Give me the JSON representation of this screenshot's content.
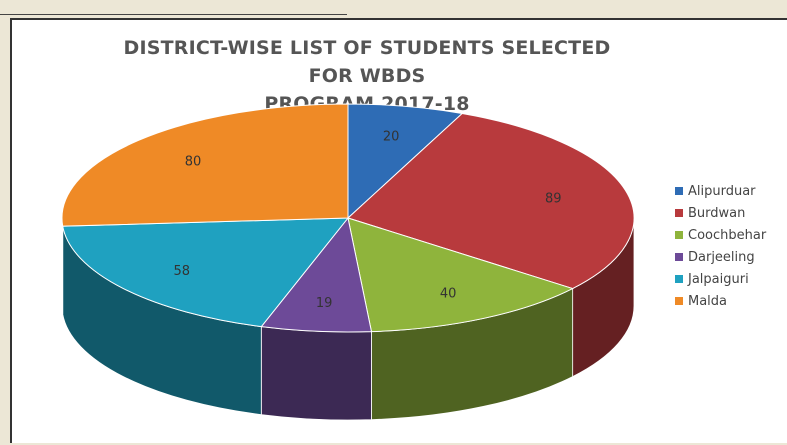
{
  "chart_data": {
    "type": "pie",
    "title_line1": "DISTRICT-WISE LIST OF STUDENTS SELECTED FOR WBDS",
    "title_line2": "PROGRAM 2017-18",
    "categories": [
      "Alipurduar",
      "Burdwan",
      "Coochbehar",
      "Darjeeling",
      "Jalpaiguri",
      "Malda"
    ],
    "values": [
      20,
      89,
      40,
      19,
      58,
      80
    ],
    "colors": [
      "#2e6cb5",
      "#b83a3d",
      "#8fb43c",
      "#6d4a98",
      "#1fa1c0",
      "#ef8a26"
    ],
    "legend_position": "right",
    "three_d": true
  }
}
